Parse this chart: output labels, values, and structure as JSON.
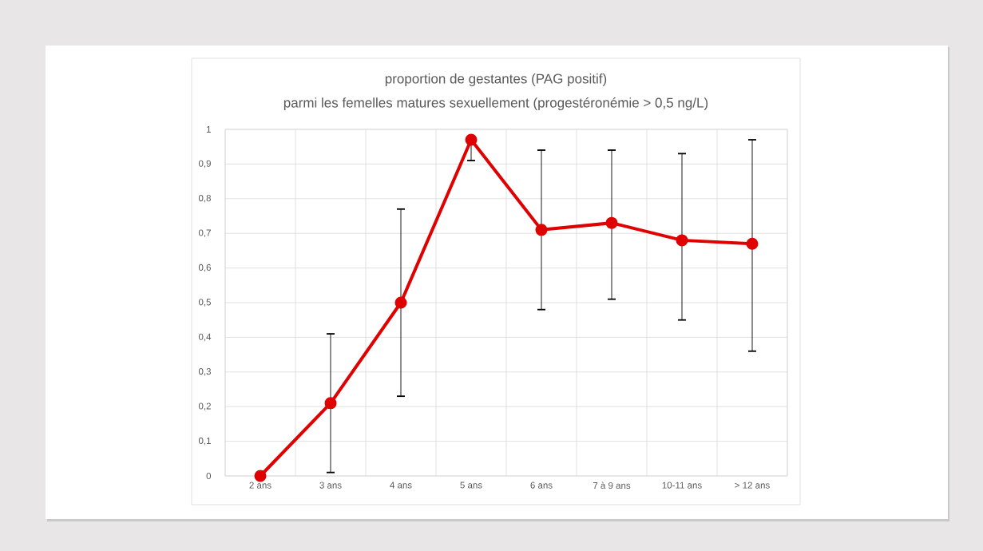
{
  "chart_data": {
    "type": "line",
    "title": "proportion de gestantes (PAG positif)",
    "subtitle": "parmi les femelles matures sexuellement (progestéronémie > 0,5 ng/L)",
    "categories": [
      "2 ans",
      "3 ans",
      "4 ans",
      "5 ans",
      "6 ans",
      "7 à 9 ans",
      "10-11 ans",
      "> 12 ans"
    ],
    "values": [
      0,
      0.21,
      0.5,
      0.97,
      0.71,
      0.73,
      0.68,
      0.67
    ],
    "errors": [
      [
        0,
        0
      ],
      [
        0.01,
        0.41
      ],
      [
        0.23,
        0.77
      ],
      [
        0.91,
        0.97
      ],
      [
        0.48,
        0.94
      ],
      [
        0.51,
        0.94
      ],
      [
        0.45,
        0.93
      ],
      [
        0.36,
        0.97
      ]
    ],
    "color": "#e00000",
    "marker": "circle",
    "grid": true,
    "ylim": [
      0,
      1
    ],
    "yticks": [
      0,
      {
        "value": 0.1,
        "label": "0,1"
      },
      {
        "value": 0.2,
        "label": "0,2"
      },
      {
        "value": 0.3,
        "label": "0,3"
      },
      {
        "value": 0.4,
        "label": "0,4"
      },
      {
        "value": 0.5,
        "label": "0,5"
      },
      {
        "value": 0.6,
        "label": "0,6"
      },
      {
        "value": 0.7,
        "label": "0,7"
      },
      {
        "value": 0.8,
        "label": "0,8"
      },
      {
        "value": 0.9,
        "label": "0,9"
      },
      1
    ]
  }
}
